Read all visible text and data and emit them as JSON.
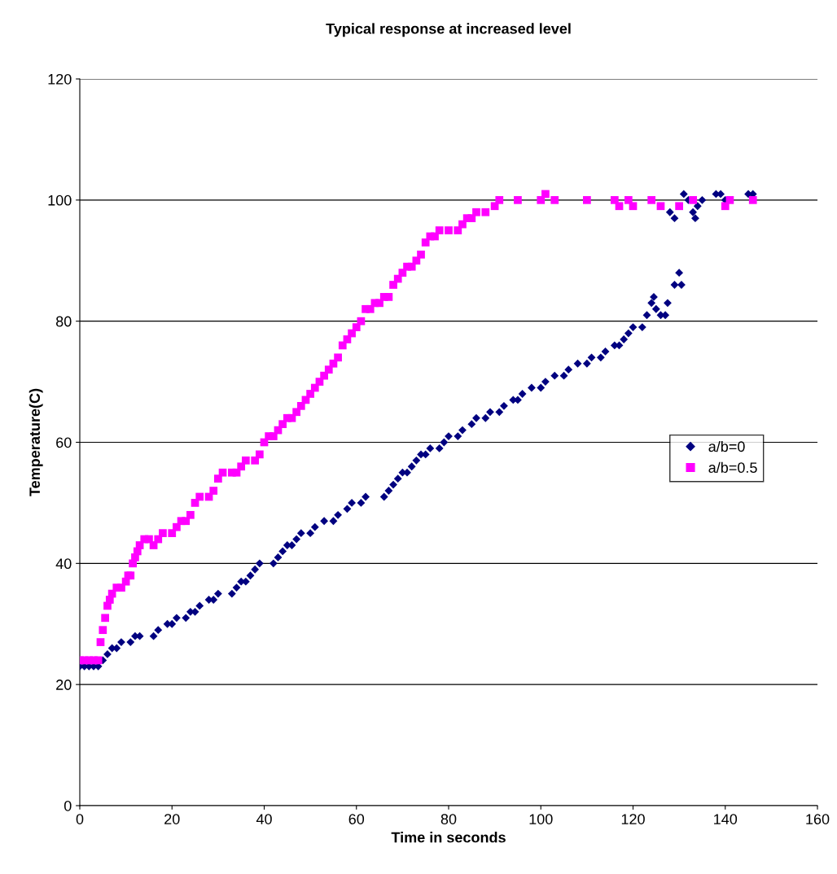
{
  "chart_data": {
    "type": "scatter",
    "title": "Typical response at increased level",
    "xlabel": "Time in seconds",
    "ylabel": "Temperature(C)",
    "xlim": [
      0,
      160
    ],
    "xticks": [
      0,
      20,
      40,
      60,
      80,
      100,
      120,
      140,
      160
    ],
    "ylim": [
      0,
      120
    ],
    "yticks": [
      0,
      20,
      40,
      60,
      80,
      100,
      120
    ],
    "grid": "y",
    "legend": "right",
    "series": [
      {
        "name": "a/b=0",
        "color": "#000080",
        "marker": "diamond",
        "x": [
          0,
          1,
          2,
          3,
          4,
          5,
          6,
          7,
          8,
          9,
          11,
          12,
          13,
          16,
          17,
          19,
          20,
          21,
          23,
          24,
          25,
          26,
          28,
          29,
          30,
          33,
          34,
          35,
          36,
          37,
          38,
          39,
          42,
          43,
          44,
          45,
          46,
          47,
          48,
          50,
          51,
          53,
          55,
          56,
          58,
          59,
          61,
          62,
          66,
          67,
          68,
          69,
          70,
          71,
          72,
          73,
          74,
          75,
          76,
          78,
          79,
          80,
          82,
          83,
          85,
          86,
          88,
          89,
          91,
          92,
          94,
          95,
          96,
          98,
          100,
          101,
          103,
          105,
          106,
          108,
          110,
          111,
          113,
          114,
          116,
          117,
          118,
          119,
          120,
          122,
          123,
          124,
          124.5,
          125,
          126,
          127,
          127.5,
          129,
          130,
          130.5,
          128,
          129,
          131,
          132,
          133,
          133.5,
          134,
          135,
          138,
          139,
          140,
          145,
          146
        ],
        "values": [
          23,
          23,
          23,
          23,
          23,
          24,
          25,
          26,
          26,
          27,
          27,
          28,
          28,
          28,
          29,
          30,
          30,
          31,
          31,
          32,
          32,
          33,
          34,
          34,
          35,
          35,
          36,
          37,
          37,
          38,
          39,
          40,
          40,
          41,
          42,
          43,
          43,
          44,
          45,
          45,
          46,
          47,
          47,
          48,
          49,
          50,
          50,
          51,
          51,
          52,
          53,
          54,
          55,
          55,
          56,
          57,
          58,
          58,
          59,
          59,
          60,
          61,
          61,
          62,
          63,
          64,
          64,
          65,
          65,
          66,
          67,
          67,
          68,
          69,
          69,
          70,
          71,
          71,
          72,
          73,
          73,
          74,
          74,
          75,
          76,
          76,
          77,
          78,
          79,
          79,
          81,
          83,
          84,
          82,
          81,
          81,
          83,
          86,
          88,
          86,
          98,
          97,
          101,
          100,
          98,
          97,
          99,
          100,
          101,
          101,
          100,
          101,
          101
        ]
      },
      {
        "name": "a/b=0.5",
        "color": "#ff00ff",
        "marker": "square",
        "x": [
          0,
          1,
          2,
          3,
          4,
          4.5,
          5,
          5.5,
          6,
          6.5,
          7,
          8,
          9,
          10,
          10.5,
          11,
          11.5,
          12,
          12.5,
          13,
          14,
          15,
          16,
          17,
          18,
          20,
          21,
          22,
          23,
          24,
          25,
          26,
          28,
          29,
          30,
          31,
          33,
          34,
          35,
          36,
          38,
          39,
          40,
          41,
          42,
          43,
          44,
          45,
          46,
          47,
          48,
          49,
          50,
          51,
          52,
          53,
          54,
          55,
          56,
          57,
          58,
          59,
          60,
          61,
          62,
          63,
          64,
          65,
          66,
          67,
          68,
          69,
          70,
          71,
          72,
          73,
          74,
          75,
          76,
          77,
          78,
          80,
          82,
          83,
          84,
          85,
          86,
          88,
          90,
          91,
          95,
          100,
          101,
          103,
          110,
          116,
          117,
          119,
          120,
          124,
          126,
          130,
          133,
          140,
          141,
          146
        ],
        "values": [
          24,
          24,
          24,
          24,
          24,
          27,
          29,
          31,
          33,
          34,
          35,
          36,
          36,
          37,
          38,
          38,
          40,
          41,
          42,
          43,
          44,
          44,
          43,
          44,
          45,
          45,
          46,
          47,
          47,
          48,
          50,
          51,
          51,
          52,
          54,
          55,
          55,
          55,
          56,
          57,
          57,
          58,
          60,
          61,
          61,
          62,
          63,
          64,
          64,
          65,
          66,
          67,
          68,
          69,
          70,
          71,
          72,
          73,
          74,
          76,
          77,
          78,
          79,
          80,
          82,
          82,
          83,
          83,
          84,
          84,
          86,
          87,
          88,
          89,
          89,
          90,
          91,
          93,
          94,
          94,
          95,
          95,
          95,
          96,
          97,
          97,
          98,
          98,
          99,
          100,
          100,
          100,
          101,
          100,
          100,
          100,
          99,
          100,
          99,
          100,
          99,
          99,
          100,
          99,
          100,
          100
        ]
      }
    ]
  }
}
